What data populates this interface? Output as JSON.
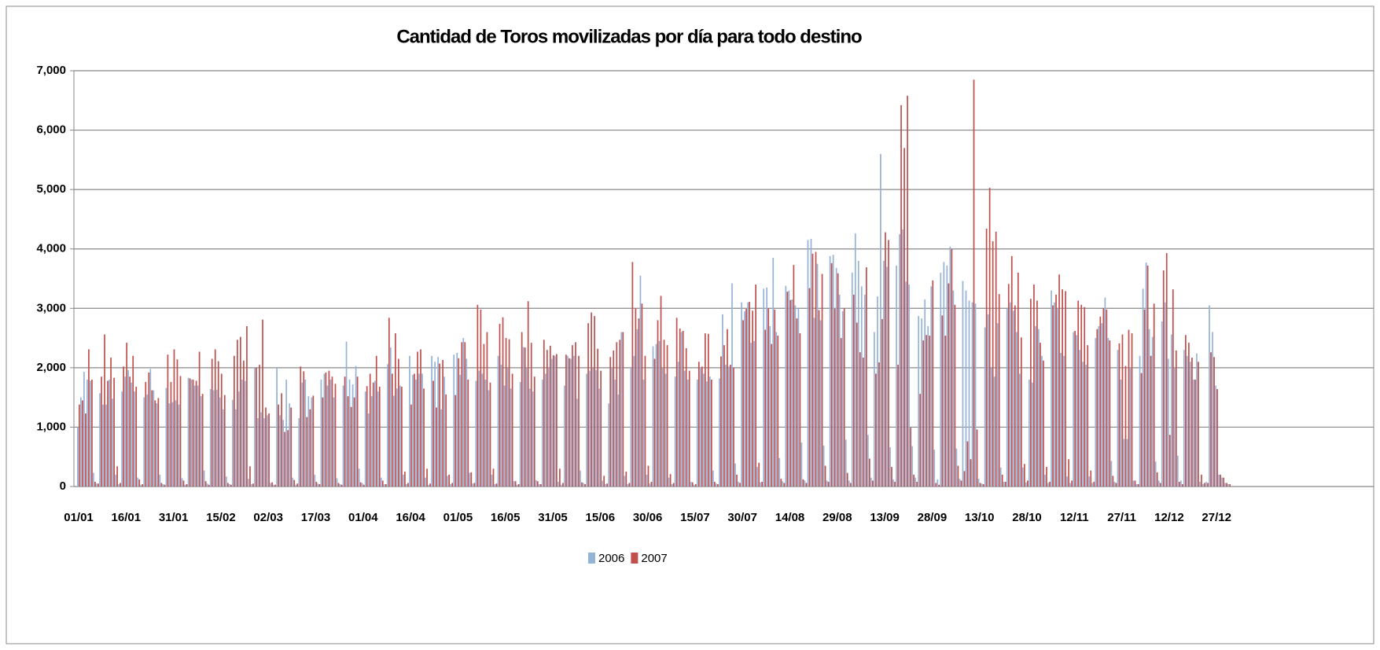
{
  "chart_data": {
    "type": "bar",
    "title": "Cantidad de Toros movilizadas por día para todo destino",
    "categories": [
      "01/01",
      null,
      null,
      null,
      null,
      null,
      null,
      null,
      null,
      null,
      null,
      null,
      null,
      null,
      null,
      "16/01",
      null,
      null,
      null,
      null,
      null,
      null,
      null,
      null,
      null,
      null,
      null,
      null,
      null,
      null,
      "31/01",
      null,
      null,
      null,
      null,
      null,
      null,
      null,
      null,
      null,
      null,
      null,
      null,
      null,
      null,
      "15/02",
      null,
      null,
      null,
      null,
      null,
      null,
      null,
      null,
      null,
      null,
      null,
      null,
      null,
      null,
      "02/03",
      null,
      null,
      null,
      null,
      null,
      null,
      null,
      null,
      null,
      null,
      null,
      null,
      null,
      null,
      "17/03",
      null,
      null,
      null,
      null,
      null,
      null,
      null,
      null,
      null,
      null,
      null,
      null,
      null,
      null,
      "01/04",
      null,
      null,
      null,
      null,
      null,
      null,
      null,
      null,
      null,
      null,
      null,
      null,
      null,
      null,
      "16/04",
      null,
      null,
      null,
      null,
      null,
      null,
      null,
      null,
      null,
      null,
      null,
      null,
      null,
      null,
      "01/05",
      null,
      null,
      null,
      null,
      null,
      null,
      null,
      null,
      null,
      null,
      null,
      null,
      null,
      null,
      "16/05",
      null,
      null,
      null,
      null,
      null,
      null,
      null,
      null,
      null,
      null,
      null,
      null,
      null,
      null,
      "31/05",
      null,
      null,
      null,
      null,
      null,
      null,
      null,
      null,
      null,
      null,
      null,
      null,
      null,
      null,
      "15/06",
      null,
      null,
      null,
      null,
      null,
      null,
      null,
      null,
      null,
      null,
      null,
      null,
      null,
      null,
      "30/06",
      null,
      null,
      null,
      null,
      null,
      null,
      null,
      null,
      null,
      null,
      null,
      null,
      null,
      null,
      "15/07",
      null,
      null,
      null,
      null,
      null,
      null,
      null,
      null,
      null,
      null,
      null,
      null,
      null,
      null,
      "30/07",
      null,
      null,
      null,
      null,
      null,
      null,
      null,
      null,
      null,
      null,
      null,
      null,
      null,
      null,
      "14/08",
      null,
      null,
      null,
      null,
      null,
      null,
      null,
      null,
      null,
      null,
      null,
      null,
      null,
      null,
      "29/08",
      null,
      null,
      null,
      null,
      null,
      null,
      null,
      null,
      null,
      null,
      null,
      null,
      null,
      null,
      "13/09",
      null,
      null,
      null,
      null,
      null,
      null,
      null,
      null,
      null,
      null,
      null,
      null,
      null,
      null,
      "28/09",
      null,
      null,
      null,
      null,
      null,
      null,
      null,
      null,
      null,
      null,
      null,
      null,
      null,
      null,
      "13/10",
      null,
      null,
      null,
      null,
      null,
      null,
      null,
      null,
      null,
      null,
      null,
      null,
      null,
      null,
      "28/10",
      null,
      null,
      null,
      null,
      null,
      null,
      null,
      null,
      null,
      null,
      null,
      null,
      null,
      null,
      "12/11",
      null,
      null,
      null,
      null,
      null,
      null,
      null,
      null,
      null,
      null,
      null,
      null,
      null,
      null,
      "27/11",
      null,
      null,
      null,
      null,
      null,
      null,
      null,
      null,
      null,
      null,
      null,
      null,
      null,
      null,
      "12/12",
      null,
      null,
      null,
      null,
      null,
      null,
      null,
      null,
      null,
      null,
      null,
      null,
      null,
      null,
      "27/12",
      null,
      null,
      null,
      null
    ],
    "series": [
      {
        "name": "2006",
        "color": "#95b3d7",
        "values": [
          1000,
          1500,
          1930,
          1800,
          1780,
          230,
          50,
          1570,
          1380,
          1380,
          1800,
          1480,
          200,
          40,
          1600,
          1850,
          1960,
          1750,
          1600,
          150,
          30,
          1500,
          1550,
          1980,
          1620,
          1400,
          200,
          40,
          1660,
          1400,
          1420,
          1450,
          1380,
          140,
          30,
          1830,
          1800,
          1700,
          1700,
          1520,
          270,
          50,
          1640,
          1620,
          1630,
          1500,
          1300,
          170,
          40,
          1460,
          1300,
          1600,
          1800,
          1780,
          130,
          40,
          2000,
          1150,
          1250,
          1150,
          1200,
          60,
          30,
          2000,
          1200,
          1120,
          1800,
          1400,
          150,
          30,
          1150,
          1750,
          1800,
          1520,
          1500,
          200,
          50,
          1800,
          1900,
          1700,
          1800,
          1500,
          140,
          40,
          1700,
          2440,
          1800,
          1720,
          2030,
          300,
          60,
          1600,
          1230,
          1520,
          1780,
          1600,
          150,
          40,
          2060,
          2340,
          1530,
          1650,
          1700,
          200,
          40,
          2200,
          1880,
          1800,
          1900,
          1900,
          150,
          30,
          2200,
          2100,
          2180,
          1300,
          1850,
          180,
          40,
          2220,
          2250,
          1880,
          2500,
          2150,
          230,
          50,
          1780,
          1950,
          1900,
          1800,
          1620,
          200,
          40,
          2200,
          2050,
          1700,
          2000,
          1650,
          90,
          30,
          1760,
          2350,
          2000,
          1650,
          1600,
          110,
          40,
          1800,
          1900,
          2000,
          2150,
          2200,
          80,
          30,
          1700,
          2200,
          2150,
          2200,
          1480,
          270,
          60,
          1900,
          1950,
          1990,
          1960,
          1650,
          100,
          40,
          1400,
          2000,
          1800,
          1550,
          2600,
          180,
          40,
          2000,
          2200,
          2650,
          3550,
          1800,
          200,
          50,
          2360,
          2400,
          2450,
          2000,
          1900,
          150,
          40,
          1850,
          2100,
          2600,
          1950,
          1800,
          80,
          30,
          1800,
          2000,
          1900,
          1770,
          1850,
          270,
          50,
          1820,
          2900,
          2050,
          2020,
          3420,
          390,
          80,
          3100,
          2950,
          3100,
          2420,
          2450,
          330,
          70,
          3330,
          3350,
          2700,
          3850,
          2600,
          480,
          90,
          3380,
          3300,
          3150,
          3050,
          3000,
          740,
          100,
          4150,
          4170,
          2840,
          3750,
          2800,
          690,
          100,
          3880,
          3900,
          3680,
          3230,
          2950,
          790,
          100,
          3600,
          4260,
          3800,
          3370,
          3230,
          870,
          150,
          2600,
          3200,
          5600,
          3800,
          3700,
          660,
          120,
          3720,
          4250,
          4330,
          3450,
          3400,
          680,
          150,
          2870,
          2830,
          3150,
          2700,
          3370,
          620,
          120,
          3600,
          3780,
          3720,
          4040,
          3300,
          640,
          130,
          3460,
          3300,
          3130,
          3100,
          3080,
          130,
          50,
          2680,
          2900,
          2000,
          1850,
          2750,
          320,
          80,
          3000,
          3100,
          2960,
          2600,
          1900,
          320,
          70,
          1800,
          1750,
          2700,
          2650,
          2200,
          200,
          60,
          3300,
          3100,
          3000,
          2250,
          2200,
          170,
          60,
          2600,
          2550,
          2300,
          2100,
          2050,
          170,
          60,
          2500,
          2700,
          2750,
          3180,
          2500,
          430,
          80,
          2300,
          1800,
          800,
          800,
          2000,
          100,
          40,
          2200,
          3330,
          3770,
          2650,
          2520,
          420,
          100,
          2780,
          3100,
          2150,
          2560,
          2000,
          520,
          100,
          2300,
          2200,
          2100,
          1800,
          2240,
          80,
          40,
          80,
          3050,
          2600,
          1700,
          200,
          150,
          60,
          40
        ]
      },
      {
        "name": "2007",
        "color": "#c0504d",
        "values": [
          1380,
          1450,
          1230,
          2310,
          1800,
          80,
          50,
          1850,
          2560,
          1780,
          2170,
          1830,
          340,
          60,
          2020,
          2420,
          1850,
          2200,
          1680,
          120,
          40,
          1760,
          1920,
          1620,
          1450,
          1490,
          60,
          30,
          2220,
          1760,
          2310,
          2140,
          1860,
          100,
          40,
          1820,
          1800,
          1780,
          2270,
          1560,
          90,
          30,
          2150,
          2310,
          2110,
          1900,
          1540,
          60,
          30,
          2200,
          2470,
          2520,
          2120,
          2700,
          340,
          50,
          2000,
          2050,
          2810,
          1330,
          1230,
          70,
          30,
          1380,
          1570,
          920,
          950,
          1330,
          110,
          50,
          2020,
          1940,
          1170,
          1300,
          1530,
          80,
          40,
          1500,
          1920,
          1950,
          1850,
          1730,
          60,
          30,
          1850,
          1520,
          1340,
          1500,
          1850,
          70,
          30,
          1690,
          1900,
          1750,
          2200,
          1680,
          100,
          40,
          2840,
          1900,
          2580,
          2150,
          1680,
          250,
          60,
          1380,
          1900,
          2270,
          2310,
          1650,
          300,
          50,
          1780,
          1330,
          2070,
          2130,
          1550,
          200,
          60,
          1540,
          2160,
          2430,
          2430,
          1800,
          240,
          60,
          3060,
          2980,
          2400,
          2600,
          1750,
          300,
          50,
          2740,
          2850,
          2500,
          2480,
          1900,
          90,
          40,
          2600,
          2340,
          3120,
          2420,
          1850,
          90,
          40,
          2470,
          2300,
          2370,
          2210,
          2230,
          300,
          60,
          2220,
          2160,
          2380,
          2430,
          2200,
          70,
          40,
          2750,
          2930,
          2870,
          2320,
          1950,
          180,
          50,
          2180,
          2290,
          2430,
          2470,
          2600,
          250,
          60,
          3780,
          3000,
          2830,
          3080,
          2200,
          350,
          80,
          2150,
          2800,
          3210,
          2470,
          2380,
          210,
          60,
          2840,
          2660,
          2620,
          2330,
          1950,
          70,
          40,
          2100,
          2020,
          2580,
          2570,
          1800,
          80,
          40,
          2190,
          2380,
          2650,
          2050,
          2000,
          200,
          60,
          2800,
          2990,
          3110,
          2960,
          3400,
          400,
          80,
          2640,
          3000,
          2400,
          2980,
          2540,
          130,
          60,
          3280,
          3140,
          3730,
          2830,
          2580,
          120,
          60,
          3340,
          3920,
          3950,
          2970,
          3580,
          350,
          80,
          3760,
          2990,
          3590,
          2500,
          3000,
          230,
          60,
          3230,
          2760,
          2260,
          2170,
          3690,
          470,
          100,
          1900,
          2090,
          2820,
          4280,
          4150,
          330,
          80,
          2050,
          6420,
          5700,
          6580,
          990,
          200,
          80,
          1560,
          2460,
          2550,
          2540,
          3470,
          60,
          30,
          2880,
          2540,
          3420,
          4000,
          3060,
          350,
          100,
          260,
          760,
          460,
          6850,
          960,
          60,
          40,
          4340,
          5030,
          4130,
          4290,
          3240,
          200,
          80,
          3410,
          3880,
          3050,
          3600,
          2510,
          380,
          100,
          3160,
          3400,
          3130,
          2420,
          2120,
          330,
          80,
          3050,
          3230,
          3570,
          3320,
          3290,
          460,
          100,
          2620,
          3130,
          3060,
          3020,
          2380,
          270,
          80,
          2650,
          2860,
          3000,
          2980,
          2460,
          180,
          60,
          2410,
          2560,
          2030,
          2640,
          2580,
          100,
          40,
          1910,
          2980,
          3720,
          2200,
          3080,
          240,
          60,
          3640,
          3930,
          870,
          3320,
          2290,
          80,
          40,
          2550,
          2420,
          2170,
          1800,
          2100,
          200,
          60,
          60,
          2260,
          2180,
          1640,
          200,
          150,
          60,
          40
        ]
      }
    ],
    "ylim": [
      0,
      7000
    ],
    "yticks": [
      0,
      {
        "value": 1000,
        "label": "1,000"
      },
      {
        "value": 2000,
        "label": "2,000"
      },
      {
        "value": 3000,
        "label": "3,000"
      },
      {
        "value": 4000,
        "label": "4,000"
      },
      {
        "value": 5000,
        "label": "5,000"
      },
      {
        "value": 6000,
        "label": "6,000"
      },
      {
        "value": 7000,
        "label": "7,000"
      }
    ],
    "grid": true,
    "legend": "bottom"
  }
}
